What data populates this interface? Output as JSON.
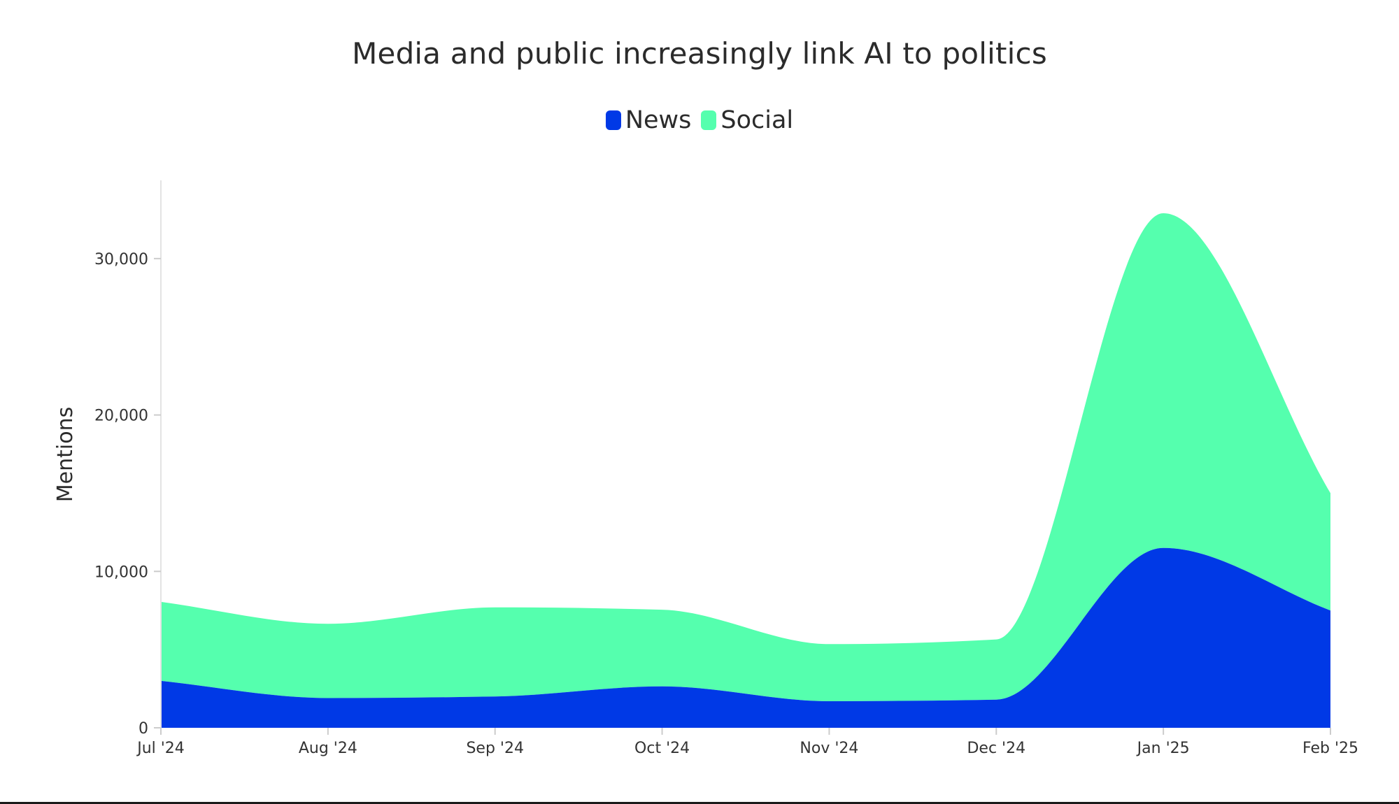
{
  "chart_data": {
    "type": "area",
    "stacked": true,
    "title": "Media and public increasingly link AI to politics",
    "ylabel": "Mentions",
    "xlabel": "",
    "x": [
      "Jul '24",
      "Aug '24",
      "Sep '24",
      "Oct '24",
      "Nov '24",
      "Dec '24",
      "Jan '25",
      "Feb '25"
    ],
    "ylim": [
      0,
      35000
    ],
    "yticks": [
      0,
      10000,
      20000,
      30000
    ],
    "ytick_labels": [
      "0",
      "10,000",
      "20,000",
      "30,000"
    ],
    "legend_position": "top-center",
    "grid": false,
    "series": [
      {
        "name": "News",
        "color": "#0039e6",
        "values": [
          3000,
          1900,
          2000,
          2650,
          1700,
          1800,
          11500,
          7500
        ]
      },
      {
        "name": "Social",
        "color": "#55ffae",
        "values": [
          5050,
          4750,
          5700,
          4900,
          3650,
          3850,
          21400,
          7500
        ]
      }
    ]
  }
}
